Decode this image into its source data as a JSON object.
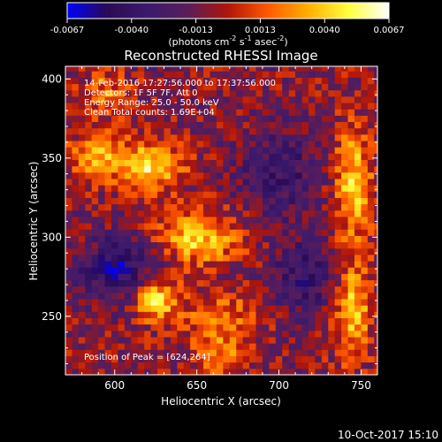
{
  "colorbar": {
    "ticks": [
      "-0.0067",
      "-0.0040",
      "-0.0013",
      "0.0013",
      "0.0040",
      "0.0067"
    ],
    "unit_label": "(photons cm",
    "unit_exp1": "-2",
    "unit_mid": " s",
    "unit_exp2": "-1",
    "unit_mid2": " asec",
    "unit_exp3": "-2",
    "unit_end": ")",
    "stops": [
      "#0000ff",
      "#2b0a55",
      "#3b1a6e",
      "#5a1d5a",
      "#b0150a",
      "#ff5a00",
      "#ffb000",
      "#ffff40",
      "#ffffff"
    ]
  },
  "annotations": {
    "time_range": "14-Feb-2016 17:27:56.000 to 17:37:56.000",
    "detectors": "Detectors: 1F 5F 7F, Att 0",
    "energy": "Energy Range: 25.0 - 50.0 keV",
    "method": "Clean    Total counts: 1.69E+04",
    "peak": "Position of Peak = [624,264]"
  },
  "footer": {
    "timestamp": "10-Oct-2017 15:10"
  },
  "chart_data": {
    "type": "heatmap",
    "title": "Reconstructed RHESSI Image",
    "xlabel": "Heliocentric X (arcsec)",
    "ylabel": "Heliocentric Y (arcsec)",
    "xlim": [
      570,
      760
    ],
    "ylim": [
      213,
      408
    ],
    "xticks": [
      600,
      650,
      700,
      750
    ],
    "yticks": [
      250,
      300,
      350,
      400
    ],
    "xtick_labels": [
      "600",
      "650",
      "700",
      "750"
    ],
    "ytick_labels": [
      "250",
      "300",
      "350",
      "400"
    ],
    "zlim": [
      -0.0067,
      0.0067
    ],
    "peak_position": [
      624,
      264
    ],
    "bright_sources": [
      {
        "x": 622,
        "y": 345,
        "intensity": 0.0055,
        "sx": 14,
        "sy": 10
      },
      {
        "x": 590,
        "y": 352,
        "intensity": 0.004,
        "sx": 12,
        "sy": 10
      },
      {
        "x": 650,
        "y": 300,
        "intensity": 0.005,
        "sx": 18,
        "sy": 12
      },
      {
        "x": 625,
        "y": 262,
        "intensity": 0.006,
        "sx": 10,
        "sy": 10
      },
      {
        "x": 665,
        "y": 250,
        "intensity": 0.003,
        "sx": 16,
        "sy": 10
      },
      {
        "x": 745,
        "y": 335,
        "intensity": 0.005,
        "sx": 8,
        "sy": 24
      },
      {
        "x": 745,
        "y": 255,
        "intensity": 0.0045,
        "sx": 8,
        "sy": 22
      },
      {
        "x": 665,
        "y": 225,
        "intensity": 0.003,
        "sx": 12,
        "sy": 10
      },
      {
        "x": 595,
        "y": 390,
        "intensity": 0.003,
        "sx": 10,
        "sy": 10
      }
    ],
    "dark_regions": [
      {
        "x": 605,
        "y": 280,
        "intensity": -0.0045,
        "sx": 18,
        "sy": 14
      },
      {
        "x": 700,
        "y": 340,
        "intensity": -0.003,
        "sx": 18,
        "sy": 20
      },
      {
        "x": 715,
        "y": 275,
        "intensity": -0.003,
        "sx": 14,
        "sy": 18
      }
    ]
  }
}
